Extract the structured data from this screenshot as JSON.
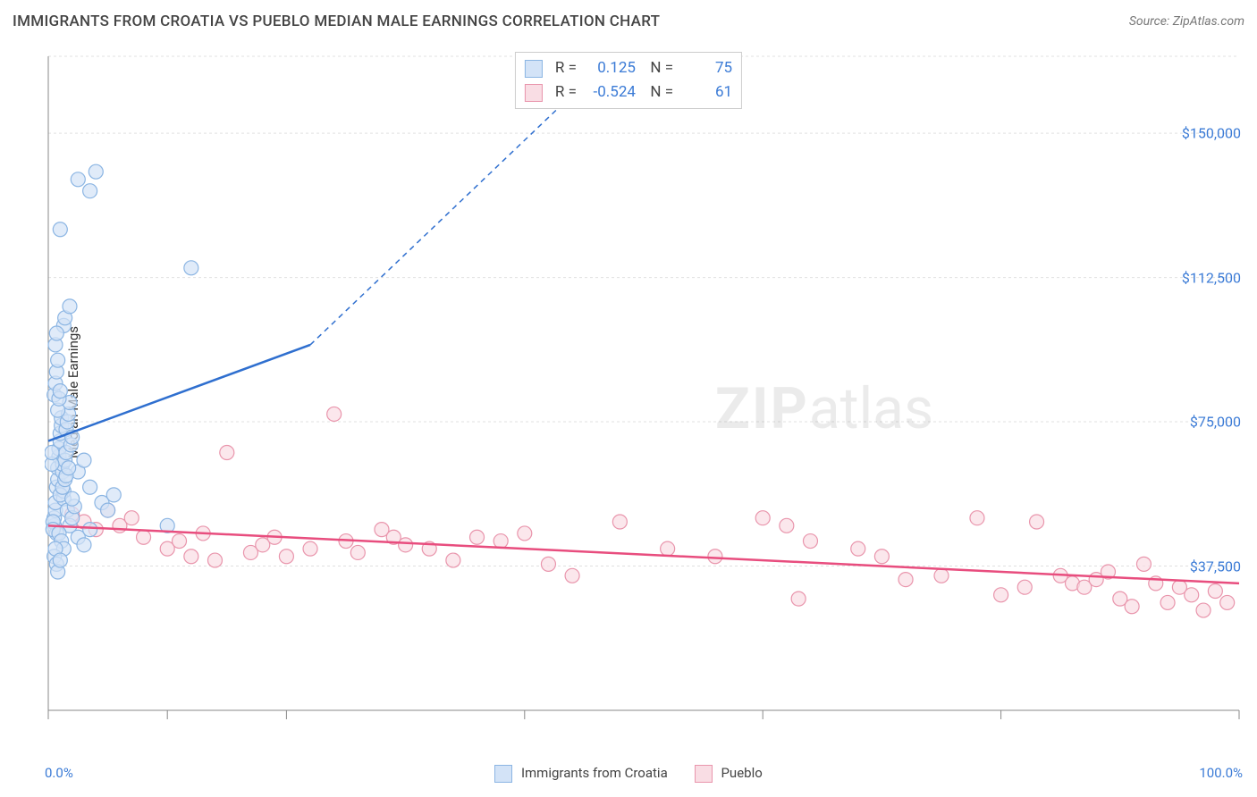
{
  "title": "IMMIGRANTS FROM CROATIA VS PUEBLO MEDIAN MALE EARNINGS CORRELATION CHART",
  "source": "Source: ZipAtlas.com",
  "y_axis_label": "Median Male Earnings",
  "watermark_zip": "ZIP",
  "watermark_atlas": "atlas",
  "chart": {
    "type": "scatter",
    "xlim": [
      0,
      100
    ],
    "ylim": [
      0,
      170000
    ],
    "x_tick_positions": [
      0,
      10,
      20,
      40,
      60,
      80,
      100
    ],
    "x_label_min": "0.0%",
    "x_label_max": "100.0%",
    "y_ticks": [
      37500,
      75000,
      112500,
      150000
    ],
    "y_tick_labels": [
      "$37,500",
      "$75,000",
      "$112,500",
      "$150,000"
    ],
    "grid_color": "#e0e0e0",
    "axis_color": "#888888",
    "background_color": "#ffffff",
    "marker_radius": 8,
    "marker_stroke_width": 1.2,
    "line_width": 2.5,
    "series": {
      "croatia": {
        "label": "Immigrants from Croatia",
        "fill": "#d3e3f7",
        "stroke": "#8bb5e3",
        "line_color": "#2f6fcf",
        "R": "0.125",
        "N": "75",
        "regression": {
          "x1": 0,
          "y1": 70000,
          "x2": 22,
          "y2": 95000
        },
        "regression_dashed": {
          "x1": 22,
          "y1": 95000,
          "x2": 44,
          "y2": 160000
        },
        "points": [
          [
            0.5,
            48000
          ],
          [
            0.5,
            50000
          ],
          [
            0.6,
            52000
          ],
          [
            0.6,
            54000
          ],
          [
            0.7,
            46000
          ],
          [
            0.7,
            58000
          ],
          [
            0.8,
            60000
          ],
          [
            0.8,
            63000
          ],
          [
            0.9,
            66000
          ],
          [
            0.9,
            68000
          ],
          [
            1.0,
            70000
          ],
          [
            1.0,
            72000
          ],
          [
            1.1,
            74000
          ],
          [
            1.1,
            76000
          ],
          [
            1.2,
            62000
          ],
          [
            1.2,
            64000
          ],
          [
            1.3,
            55000
          ],
          [
            1.3,
            57000
          ],
          [
            1.4,
            65000
          ],
          [
            1.5,
            67000
          ],
          [
            1.5,
            73000
          ],
          [
            1.6,
            75000
          ],
          [
            1.7,
            77000
          ],
          [
            1.8,
            80000
          ],
          [
            1.9,
            69000
          ],
          [
            2.0,
            71000
          ],
          [
            0.5,
            82000
          ],
          [
            0.6,
            85000
          ],
          [
            0.7,
            88000
          ],
          [
            0.8,
            91000
          ],
          [
            1.3,
            100000
          ],
          [
            1.4,
            102000
          ],
          [
            1.8,
            105000
          ],
          [
            0.6,
            95000
          ],
          [
            0.7,
            98000
          ],
          [
            3.5,
            135000
          ],
          [
            4.0,
            140000
          ],
          [
            2.5,
            138000
          ],
          [
            1.0,
            125000
          ],
          [
            12.0,
            115000
          ],
          [
            1.0,
            56000
          ],
          [
            1.2,
            58000
          ],
          [
            1.4,
            60000
          ],
          [
            1.6,
            52000
          ],
          [
            1.8,
            48000
          ],
          [
            2.0,
            50000
          ],
          [
            2.2,
            53000
          ],
          [
            0.4,
            49000
          ],
          [
            0.4,
            47000
          ],
          [
            2.5,
            62000
          ],
          [
            3.0,
            65000
          ],
          [
            3.5,
            58000
          ],
          [
            0.3,
            64000
          ],
          [
            0.3,
            67000
          ],
          [
            0.9,
            46000
          ],
          [
            1.1,
            44000
          ],
          [
            1.3,
            42000
          ],
          [
            2.5,
            45000
          ],
          [
            3.0,
            43000
          ],
          [
            3.5,
            47000
          ],
          [
            0.8,
            78000
          ],
          [
            0.9,
            81000
          ],
          [
            1.0,
            83000
          ],
          [
            4.5,
            54000
          ],
          [
            5.0,
            52000
          ],
          [
            5.5,
            56000
          ],
          [
            1.5,
            61000
          ],
          [
            1.7,
            63000
          ],
          [
            2.0,
            55000
          ],
          [
            10.0,
            48000
          ],
          [
            0.5,
            40000
          ],
          [
            0.6,
            42000
          ],
          [
            0.7,
            38000
          ],
          [
            0.8,
            36000
          ],
          [
            1.0,
            39000
          ]
        ]
      },
      "pueblo": {
        "label": "Pueblo",
        "fill": "#f9dde4",
        "stroke": "#e995ac",
        "line_color": "#e84d7e",
        "R": "-0.524",
        "N": "61",
        "regression": {
          "x1": 0,
          "y1": 48000,
          "x2": 100,
          "y2": 33000
        },
        "points": [
          [
            2,
            51000
          ],
          [
            3,
            49000
          ],
          [
            4,
            47000
          ],
          [
            5,
            52000
          ],
          [
            6,
            48000
          ],
          [
            7,
            50000
          ],
          [
            8,
            45000
          ],
          [
            10,
            42000
          ],
          [
            11,
            44000
          ],
          [
            12,
            40000
          ],
          [
            13,
            46000
          ],
          [
            14,
            39000
          ],
          [
            15,
            67000
          ],
          [
            17,
            41000
          ],
          [
            18,
            43000
          ],
          [
            19,
            45000
          ],
          [
            20,
            40000
          ],
          [
            22,
            42000
          ],
          [
            24,
            77000
          ],
          [
            25,
            44000
          ],
          [
            26,
            41000
          ],
          [
            28,
            47000
          ],
          [
            29,
            45000
          ],
          [
            30,
            43000
          ],
          [
            32,
            42000
          ],
          [
            34,
            39000
          ],
          [
            36,
            45000
          ],
          [
            38,
            44000
          ],
          [
            40,
            46000
          ],
          [
            42,
            38000
          ],
          [
            44,
            35000
          ],
          [
            48,
            49000
          ],
          [
            52,
            42000
          ],
          [
            56,
            40000
          ],
          [
            60,
            50000
          ],
          [
            62,
            48000
          ],
          [
            63,
            29000
          ],
          [
            64,
            44000
          ],
          [
            68,
            42000
          ],
          [
            70,
            40000
          ],
          [
            72,
            34000
          ],
          [
            75,
            35000
          ],
          [
            78,
            50000
          ],
          [
            80,
            30000
          ],
          [
            82,
            32000
          ],
          [
            83,
            49000
          ],
          [
            85,
            35000
          ],
          [
            86,
            33000
          ],
          [
            87,
            32000
          ],
          [
            88,
            34000
          ],
          [
            89,
            36000
          ],
          [
            90,
            29000
          ],
          [
            91,
            27000
          ],
          [
            92,
            38000
          ],
          [
            93,
            33000
          ],
          [
            94,
            28000
          ],
          [
            95,
            32000
          ],
          [
            96,
            30000
          ],
          [
            97,
            26000
          ],
          [
            98,
            31000
          ],
          [
            99,
            28000
          ]
        ]
      }
    }
  }
}
